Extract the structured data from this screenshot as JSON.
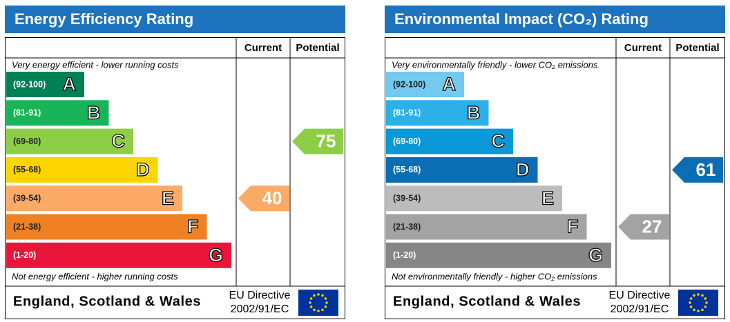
{
  "chart_data": [
    {
      "type": "epc",
      "title": "Energy Efficiency Rating",
      "columns": [
        "Current",
        "Potential"
      ],
      "top_note": "Very energy efficient - lower running costs",
      "bottom_note": "Not energy efficient - higher running costs",
      "bands": [
        {
          "range": "(92-100)",
          "letter": "A",
          "color": "#008054"
        },
        {
          "range": "(81-91)",
          "letter": "B",
          "color": "#19b459"
        },
        {
          "range": "(69-80)",
          "letter": "C",
          "color": "#8dce46"
        },
        {
          "range": "(55-68)",
          "letter": "D",
          "color": "#ffd500"
        },
        {
          "range": "(39-54)",
          "letter": "E",
          "color": "#fcaa65"
        },
        {
          "range": "(21-38)",
          "letter": "F",
          "color": "#ef8023"
        },
        {
          "range": "(1-20)",
          "letter": "G",
          "color": "#e9153b"
        }
      ],
      "current": 40,
      "potential": 75,
      "footer": "England, Scotland & Wales",
      "directive": [
        "EU Directive",
        "2002/91/EC"
      ]
    },
    {
      "type": "epc",
      "title": "Environmental Impact (CO₂) Rating",
      "columns": [
        "Current",
        "Potential"
      ],
      "top_note": "Very environmentally friendly - lower CO₂ emissions",
      "bottom_note": "Not environmentally friendly - higher CO₂ emissions",
      "bands": [
        {
          "range": "(92-100)",
          "letter": "A",
          "color": "#73c9f0"
        },
        {
          "range": "(81-91)",
          "letter": "B",
          "color": "#2bb0ea"
        },
        {
          "range": "(69-80)",
          "letter": "C",
          "color": "#0a98d6"
        },
        {
          "range": "(55-68)",
          "letter": "D",
          "color": "#0b6eb5"
        },
        {
          "range": "(39-54)",
          "letter": "E",
          "color": "#bcbcbc"
        },
        {
          "range": "(21-38)",
          "letter": "F",
          "color": "#a3a3a3"
        },
        {
          "range": "(1-20)",
          "letter": "G",
          "color": "#868686"
        }
      ],
      "current": 27,
      "potential": 61,
      "footer": "England, Scotland & Wales",
      "directive": [
        "EU Directive",
        "2002/91/EC"
      ]
    }
  ]
}
